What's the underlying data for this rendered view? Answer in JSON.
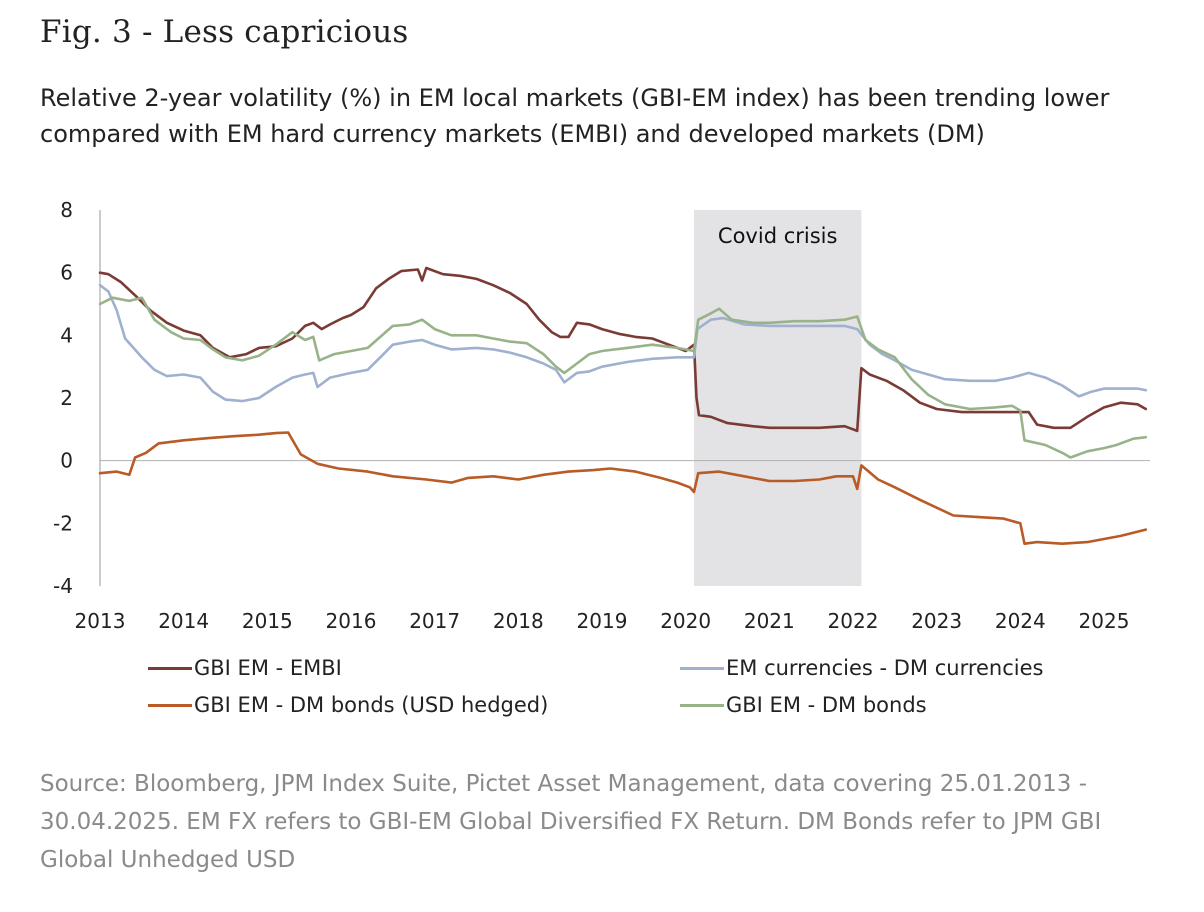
{
  "header": {
    "title": "Fig. 3 - Less capricious",
    "subtitle": "Relative 2-year volatility (%) in EM local markets (GBI-EM index) has been trending lower compared with EM hard currency markets (EMBI) and developed markets (DM)"
  },
  "source": "Source: Bloomberg, JPM Index Suite, Pictet Asset Management, data covering 25.01.2013 - 30.04.2025. EM FX refers to GBI-EM Global Diversified FX Return. DM Bonds refer to JPM GBI Global Unhedged USD",
  "chart_data": {
    "type": "line",
    "title": "",
    "xlabel": "",
    "ylabel": "",
    "xlim": [
      2013.0,
      2025.55
    ],
    "ylim": [
      -4,
      8
    ],
    "x_ticks": [
      "2013",
      "2014",
      "2015",
      "2016",
      "2017",
      "2018",
      "2019",
      "2020",
      "2021",
      "2022",
      "2023",
      "2024",
      "2025"
    ],
    "y_ticks": [
      "8",
      "6",
      "4",
      "2",
      "0",
      "-2",
      "-4"
    ],
    "grid": false,
    "zero_line": true,
    "legend_position": "bottom",
    "shaded_region": {
      "x_start": 2020.1,
      "x_end": 2022.1,
      "label": "Covid crisis",
      "color": "#e3e2e4"
    },
    "series": [
      {
        "name": "GBI EM - EMBI",
        "color": "#7a3b35",
        "points": [
          [
            2013.0,
            6.0
          ],
          [
            2013.1,
            5.95
          ],
          [
            2013.25,
            5.7
          ],
          [
            2013.45,
            5.2
          ],
          [
            2013.6,
            4.8
          ],
          [
            2013.8,
            4.4
          ],
          [
            2014.0,
            4.15
          ],
          [
            2014.2,
            4.0
          ],
          [
            2014.35,
            3.6
          ],
          [
            2014.55,
            3.3
          ],
          [
            2014.75,
            3.4
          ],
          [
            2014.9,
            3.6
          ],
          [
            2015.1,
            3.65
          ],
          [
            2015.3,
            3.9
          ],
          [
            2015.45,
            4.3
          ],
          [
            2015.55,
            4.4
          ],
          [
            2015.65,
            4.2
          ],
          [
            2015.75,
            4.35
          ],
          [
            2015.9,
            4.55
          ],
          [
            2016.0,
            4.65
          ],
          [
            2016.15,
            4.9
          ],
          [
            2016.3,
            5.5
          ],
          [
            2016.45,
            5.8
          ],
          [
            2016.6,
            6.05
          ],
          [
            2016.8,
            6.1
          ],
          [
            2016.85,
            5.75
          ],
          [
            2016.9,
            6.15
          ],
          [
            2017.1,
            5.95
          ],
          [
            2017.3,
            5.9
          ],
          [
            2017.5,
            5.8
          ],
          [
            2017.7,
            5.6
          ],
          [
            2017.9,
            5.35
          ],
          [
            2018.1,
            5.0
          ],
          [
            2018.25,
            4.5
          ],
          [
            2018.4,
            4.1
          ],
          [
            2018.5,
            3.95
          ],
          [
            2018.6,
            3.95
          ],
          [
            2018.7,
            4.4
          ],
          [
            2018.85,
            4.35
          ],
          [
            2019.0,
            4.2
          ],
          [
            2019.2,
            4.05
          ],
          [
            2019.4,
            3.95
          ],
          [
            2019.6,
            3.9
          ],
          [
            2019.8,
            3.7
          ],
          [
            2020.0,
            3.5
          ],
          [
            2020.1,
            3.7
          ],
          [
            2020.13,
            2.0
          ],
          [
            2020.16,
            1.45
          ],
          [
            2020.3,
            1.4
          ],
          [
            2020.5,
            1.2
          ],
          [
            2020.8,
            1.1
          ],
          [
            2021.0,
            1.05
          ],
          [
            2021.3,
            1.05
          ],
          [
            2021.6,
            1.05
          ],
          [
            2021.9,
            1.1
          ],
          [
            2022.05,
            0.95
          ],
          [
            2022.1,
            2.95
          ],
          [
            2022.2,
            2.75
          ],
          [
            2022.4,
            2.55
          ],
          [
            2022.6,
            2.25
          ],
          [
            2022.8,
            1.85
          ],
          [
            2023.0,
            1.65
          ],
          [
            2023.3,
            1.55
          ],
          [
            2023.6,
            1.55
          ],
          [
            2023.9,
            1.55
          ],
          [
            2024.1,
            1.55
          ],
          [
            2024.2,
            1.15
          ],
          [
            2024.4,
            1.05
          ],
          [
            2024.6,
            1.05
          ],
          [
            2024.8,
            1.4
          ],
          [
            2025.0,
            1.7
          ],
          [
            2025.2,
            1.85
          ],
          [
            2025.4,
            1.8
          ],
          [
            2025.5,
            1.65
          ]
        ]
      },
      {
        "name": "EM currencies - DM currencies",
        "color": "#9fb1cf",
        "points": [
          [
            2013.0,
            5.6
          ],
          [
            2013.1,
            5.4
          ],
          [
            2013.2,
            4.8
          ],
          [
            2013.3,
            3.9
          ],
          [
            2013.5,
            3.3
          ],
          [
            2013.65,
            2.9
          ],
          [
            2013.8,
            2.7
          ],
          [
            2014.0,
            2.75
          ],
          [
            2014.2,
            2.65
          ],
          [
            2014.35,
            2.2
          ],
          [
            2014.5,
            1.95
          ],
          [
            2014.7,
            1.9
          ],
          [
            2014.9,
            2.0
          ],
          [
            2015.1,
            2.35
          ],
          [
            2015.3,
            2.65
          ],
          [
            2015.45,
            2.75
          ],
          [
            2015.55,
            2.8
          ],
          [
            2015.6,
            2.35
          ],
          [
            2015.75,
            2.65
          ],
          [
            2016.0,
            2.8
          ],
          [
            2016.2,
            2.9
          ],
          [
            2016.35,
            3.3
          ],
          [
            2016.5,
            3.7
          ],
          [
            2016.7,
            3.8
          ],
          [
            2016.85,
            3.85
          ],
          [
            2017.0,
            3.7
          ],
          [
            2017.2,
            3.55
          ],
          [
            2017.5,
            3.6
          ],
          [
            2017.7,
            3.55
          ],
          [
            2017.9,
            3.45
          ],
          [
            2018.1,
            3.3
          ],
          [
            2018.3,
            3.1
          ],
          [
            2018.45,
            2.9
          ],
          [
            2018.55,
            2.5
          ],
          [
            2018.7,
            2.8
          ],
          [
            2018.85,
            2.85
          ],
          [
            2019.0,
            3.0
          ],
          [
            2019.3,
            3.15
          ],
          [
            2019.6,
            3.25
          ],
          [
            2019.9,
            3.3
          ],
          [
            2020.1,
            3.3
          ],
          [
            2020.14,
            4.2
          ],
          [
            2020.3,
            4.5
          ],
          [
            2020.45,
            4.55
          ],
          [
            2020.7,
            4.35
          ],
          [
            2021.0,
            4.3
          ],
          [
            2021.3,
            4.3
          ],
          [
            2021.6,
            4.3
          ],
          [
            2021.9,
            4.3
          ],
          [
            2022.05,
            4.2
          ],
          [
            2022.2,
            3.7
          ],
          [
            2022.35,
            3.4
          ],
          [
            2022.5,
            3.2
          ],
          [
            2022.7,
            2.9
          ],
          [
            2022.9,
            2.75
          ],
          [
            2023.1,
            2.6
          ],
          [
            2023.4,
            2.55
          ],
          [
            2023.7,
            2.55
          ],
          [
            2023.9,
            2.65
          ],
          [
            2024.1,
            2.8
          ],
          [
            2024.3,
            2.65
          ],
          [
            2024.5,
            2.4
          ],
          [
            2024.7,
            2.05
          ],
          [
            2024.85,
            2.2
          ],
          [
            2025.0,
            2.3
          ],
          [
            2025.2,
            2.3
          ],
          [
            2025.4,
            2.3
          ],
          [
            2025.5,
            2.25
          ]
        ]
      },
      {
        "name": "GBI EM - DM bonds (USD hedged)",
        "color": "#b95b27",
        "points": [
          [
            2013.0,
            -0.4
          ],
          [
            2013.2,
            -0.35
          ],
          [
            2013.35,
            -0.45
          ],
          [
            2013.42,
            0.1
          ],
          [
            2013.55,
            0.25
          ],
          [
            2013.7,
            0.55
          ],
          [
            2014.0,
            0.65
          ],
          [
            2014.3,
            0.72
          ],
          [
            2014.6,
            0.78
          ],
          [
            2014.9,
            0.83
          ],
          [
            2015.1,
            0.88
          ],
          [
            2015.25,
            0.9
          ],
          [
            2015.4,
            0.2
          ],
          [
            2015.6,
            -0.1
          ],
          [
            2015.85,
            -0.25
          ],
          [
            2016.2,
            -0.35
          ],
          [
            2016.5,
            -0.5
          ],
          [
            2016.9,
            -0.6
          ],
          [
            2017.2,
            -0.7
          ],
          [
            2017.4,
            -0.55
          ],
          [
            2017.7,
            -0.5
          ],
          [
            2018.0,
            -0.6
          ],
          [
            2018.3,
            -0.45
          ],
          [
            2018.6,
            -0.35
          ],
          [
            2018.9,
            -0.3
          ],
          [
            2019.1,
            -0.25
          ],
          [
            2019.4,
            -0.35
          ],
          [
            2019.7,
            -0.55
          ],
          [
            2019.9,
            -0.7
          ],
          [
            2020.05,
            -0.85
          ],
          [
            2020.1,
            -1.0
          ],
          [
            2020.15,
            -0.4
          ],
          [
            2020.4,
            -0.35
          ],
          [
            2020.7,
            -0.5
          ],
          [
            2021.0,
            -0.65
          ],
          [
            2021.3,
            -0.65
          ],
          [
            2021.6,
            -0.6
          ],
          [
            2021.8,
            -0.5
          ],
          [
            2022.0,
            -0.5
          ],
          [
            2022.05,
            -0.9
          ],
          [
            2022.1,
            -0.15
          ],
          [
            2022.3,
            -0.6
          ],
          [
            2022.5,
            -0.85
          ],
          [
            2022.8,
            -1.25
          ],
          [
            2023.0,
            -1.5
          ],
          [
            2023.2,
            -1.75
          ],
          [
            2023.5,
            -1.8
          ],
          [
            2023.8,
            -1.85
          ],
          [
            2024.0,
            -2.0
          ],
          [
            2024.05,
            -2.65
          ],
          [
            2024.2,
            -2.6
          ],
          [
            2024.5,
            -2.65
          ],
          [
            2024.8,
            -2.6
          ],
          [
            2025.0,
            -2.5
          ],
          [
            2025.2,
            -2.4
          ],
          [
            2025.35,
            -2.3
          ],
          [
            2025.5,
            -2.2
          ]
        ]
      },
      {
        "name": "GBI EM - DM bonds",
        "color": "#98b38a",
        "points": [
          [
            2013.0,
            5.0
          ],
          [
            2013.15,
            5.2
          ],
          [
            2013.35,
            5.1
          ],
          [
            2013.5,
            5.2
          ],
          [
            2013.65,
            4.5
          ],
          [
            2013.85,
            4.1
          ],
          [
            2014.0,
            3.9
          ],
          [
            2014.2,
            3.85
          ],
          [
            2014.35,
            3.55
          ],
          [
            2014.5,
            3.3
          ],
          [
            2014.7,
            3.2
          ],
          [
            2014.9,
            3.35
          ],
          [
            2015.1,
            3.7
          ],
          [
            2015.3,
            4.1
          ],
          [
            2015.45,
            3.85
          ],
          [
            2015.55,
            3.95
          ],
          [
            2015.62,
            3.2
          ],
          [
            2015.8,
            3.4
          ],
          [
            2016.0,
            3.5
          ],
          [
            2016.2,
            3.6
          ],
          [
            2016.35,
            3.95
          ],
          [
            2016.5,
            4.3
          ],
          [
            2016.7,
            4.35
          ],
          [
            2016.85,
            4.5
          ],
          [
            2017.0,
            4.2
          ],
          [
            2017.2,
            4.0
          ],
          [
            2017.5,
            4.0
          ],
          [
            2017.7,
            3.9
          ],
          [
            2017.9,
            3.8
          ],
          [
            2018.1,
            3.75
          ],
          [
            2018.3,
            3.4
          ],
          [
            2018.45,
            3.0
          ],
          [
            2018.55,
            2.8
          ],
          [
            2018.7,
            3.1
          ],
          [
            2018.85,
            3.4
          ],
          [
            2019.0,
            3.5
          ],
          [
            2019.3,
            3.6
          ],
          [
            2019.6,
            3.7
          ],
          [
            2019.9,
            3.6
          ],
          [
            2020.1,
            3.5
          ],
          [
            2020.15,
            4.5
          ],
          [
            2020.3,
            4.7
          ],
          [
            2020.4,
            4.85
          ],
          [
            2020.55,
            4.5
          ],
          [
            2020.8,
            4.4
          ],
          [
            2021.0,
            4.4
          ],
          [
            2021.3,
            4.45
          ],
          [
            2021.6,
            4.45
          ],
          [
            2021.9,
            4.5
          ],
          [
            2022.05,
            4.6
          ],
          [
            2022.15,
            3.85
          ],
          [
            2022.3,
            3.55
          ],
          [
            2022.5,
            3.3
          ],
          [
            2022.7,
            2.6
          ],
          [
            2022.9,
            2.1
          ],
          [
            2023.1,
            1.8
          ],
          [
            2023.4,
            1.65
          ],
          [
            2023.7,
            1.7
          ],
          [
            2023.9,
            1.75
          ],
          [
            2024.0,
            1.6
          ],
          [
            2024.05,
            0.65
          ],
          [
            2024.3,
            0.5
          ],
          [
            2024.5,
            0.25
          ],
          [
            2024.6,
            0.1
          ],
          [
            2024.8,
            0.3
          ],
          [
            2025.0,
            0.4
          ],
          [
            2025.15,
            0.5
          ],
          [
            2025.35,
            0.7
          ],
          [
            2025.5,
            0.75
          ]
        ]
      }
    ]
  }
}
